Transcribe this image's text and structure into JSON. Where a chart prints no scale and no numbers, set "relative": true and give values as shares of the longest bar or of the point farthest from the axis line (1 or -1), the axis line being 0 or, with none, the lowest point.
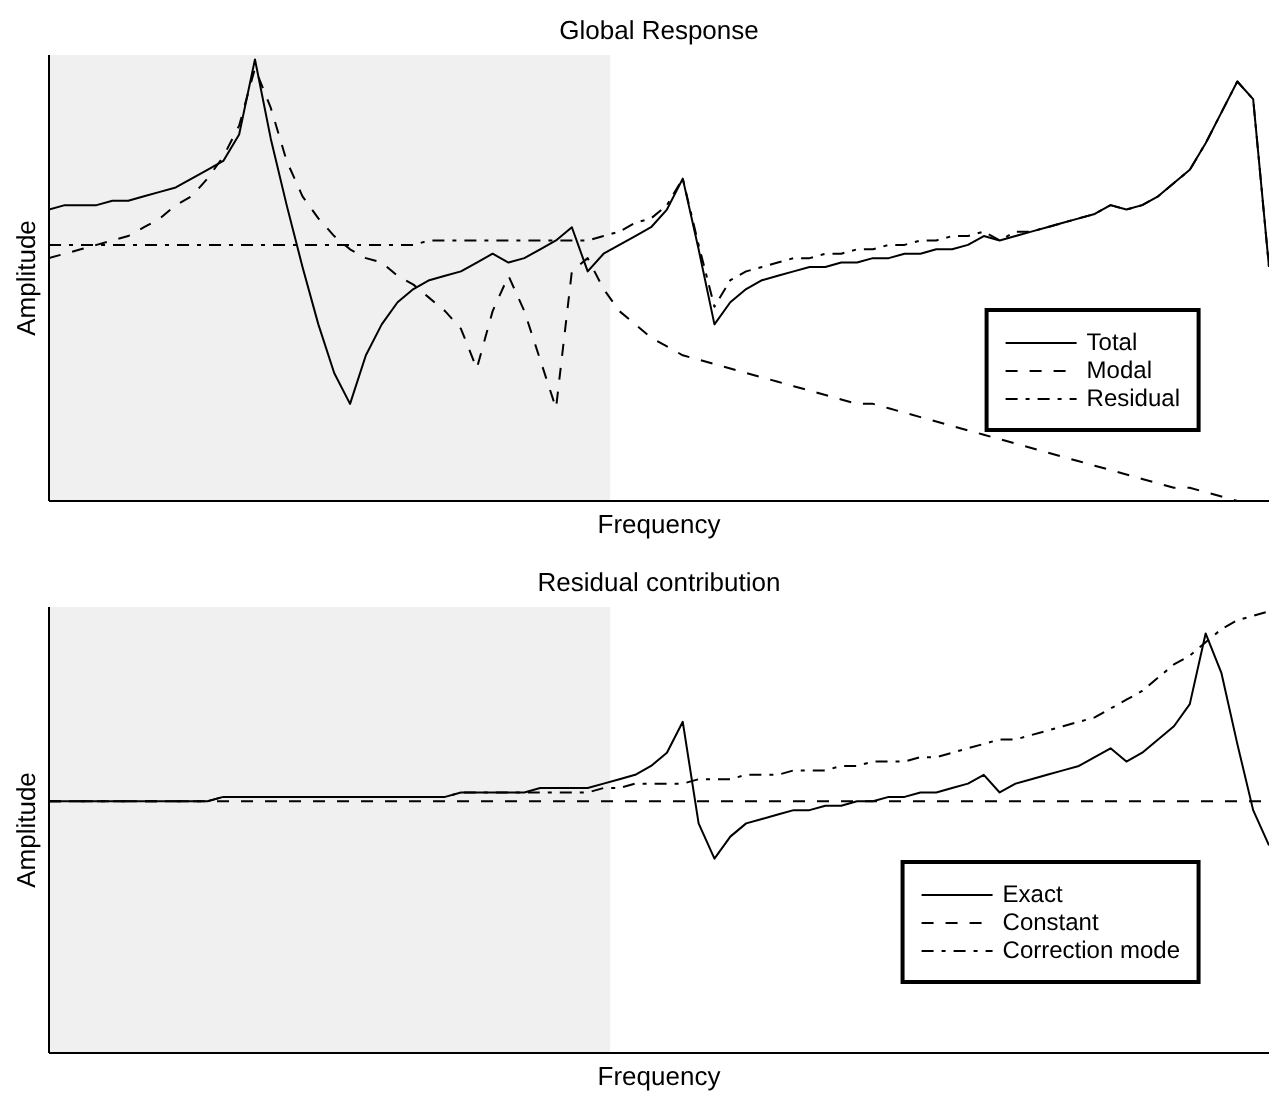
{
  "chart_data": [
    {
      "type": "line",
      "title": "Global Response",
      "xlabel": "Frequency",
      "ylabel": "Amplitude",
      "relative": true,
      "tick_labels": false,
      "legend": "bottom right",
      "categories": [
        null,
        null,
        null,
        null,
        null,
        null,
        null,
        null,
        null,
        null,
        null,
        null,
        null,
        null,
        null,
        null,
        null,
        null,
        null,
        null,
        null,
        null,
        null,
        null,
        null,
        null,
        null,
        null,
        null,
        null,
        null,
        null,
        null,
        null,
        null,
        null,
        null,
        null,
        null,
        null,
        null,
        null,
        null,
        null,
        null,
        null,
        null,
        null,
        null,
        null,
        null,
        null,
        null,
        null,
        null,
        null,
        null,
        null,
        null,
        null,
        null,
        null,
        null,
        null,
        null,
        null,
        null,
        null,
        null,
        null,
        null,
        null,
        null,
        null,
        null,
        null,
        null,
        null
      ],
      "series": [
        {
          "name": "Total",
          "color": "#000000",
          "line_style": "solid",
          "values": [
            0.66,
            0.67,
            0.67,
            0.67,
            0.68,
            0.68,
            0.69,
            0.7,
            0.71,
            0.73,
            0.75,
            0.77,
            0.83,
            1.0,
            0.82,
            0.67,
            0.53,
            0.4,
            0.29,
            0.22,
            0.33,
            0.4,
            0.45,
            0.48,
            0.5,
            0.51,
            0.52,
            0.54,
            0.56,
            0.54,
            0.55,
            0.57,
            0.59,
            0.62,
            0.52,
            0.56,
            0.58,
            0.6,
            0.62,
            0.66,
            0.73,
            0.57,
            0.4,
            0.45,
            0.48,
            0.5,
            0.51,
            0.52,
            0.53,
            0.53,
            0.54,
            0.54,
            0.55,
            0.55,
            0.56,
            0.56,
            0.57,
            0.57,
            0.58,
            0.6,
            0.59,
            0.6,
            0.61,
            0.62,
            0.63,
            0.64,
            0.65,
            0.67,
            0.66,
            0.67,
            0.69,
            0.72,
            0.75,
            0.81,
            0.88,
            0.95,
            0.91,
            0.53
          ]
        },
        {
          "name": "Modal",
          "color": "#000000",
          "line_style": "dashed",
          "values": [
            0.55,
            0.56,
            0.57,
            0.58,
            0.59,
            0.6,
            0.62,
            0.64,
            0.67,
            0.69,
            0.73,
            0.78,
            0.85,
            0.98,
            0.89,
            0.77,
            0.69,
            0.64,
            0.6,
            0.57,
            0.55,
            0.54,
            0.51,
            0.49,
            0.46,
            0.43,
            0.39,
            0.3,
            0.43,
            0.51,
            0.43,
            0.32,
            0.21,
            0.52,
            0.55,
            0.48,
            0.43,
            0.4,
            0.37,
            0.35,
            0.33,
            0.32,
            0.31,
            0.3,
            0.29,
            0.28,
            0.27,
            0.26,
            0.25,
            0.24,
            0.23,
            0.22,
            0.22,
            0.21,
            0.2,
            0.19,
            0.18,
            0.17,
            0.16,
            0.15,
            0.14,
            0.13,
            0.12,
            0.11,
            0.1,
            0.09,
            0.08,
            0.07,
            0.06,
            0.05,
            0.04,
            0.03,
            0.03,
            0.02,
            0.01,
            0,
            0,
            0
          ]
        },
        {
          "name": "Residual",
          "color": "#000000",
          "line_style": "dashdot",
          "values": [
            0.58,
            0.58,
            0.58,
            0.58,
            0.58,
            0.58,
            0.58,
            0.58,
            0.58,
            0.58,
            0.58,
            0.58,
            0.58,
            0.58,
            0.58,
            0.58,
            0.58,
            0.58,
            0.58,
            0.58,
            0.58,
            0.58,
            0.58,
            0.58,
            0.59,
            0.59,
            0.59,
            0.59,
            0.59,
            0.59,
            0.59,
            0.59,
            0.59,
            0.59,
            0.59,
            0.6,
            0.61,
            0.63,
            0.64,
            0.67,
            0.73,
            0.58,
            0.44,
            0.5,
            0.52,
            0.53,
            0.54,
            0.55,
            0.55,
            0.56,
            0.56,
            0.57,
            0.57,
            0.58,
            0.58,
            0.59,
            0.59,
            0.6,
            0.6,
            0.61,
            0.59,
            0.61,
            0.61,
            0.62,
            0.63,
            0.64,
            0.65,
            0.67,
            0.66,
            0.67,
            0.69,
            0.72,
            0.75,
            0.81,
            0.88,
            0.95,
            0.91,
            0.53
          ]
        }
      ]
    },
    {
      "type": "line",
      "title": "Residual contribution",
      "xlabel": "Frequency",
      "ylabel": "Amplitude",
      "relative": true,
      "tick_labels": false,
      "legend": "bottom right",
      "categories": [
        null,
        null,
        null,
        null,
        null,
        null,
        null,
        null,
        null,
        null,
        null,
        null,
        null,
        null,
        null,
        null,
        null,
        null,
        null,
        null,
        null,
        null,
        null,
        null,
        null,
        null,
        null,
        null,
        null,
        null,
        null,
        null,
        null,
        null,
        null,
        null,
        null,
        null,
        null,
        null,
        null,
        null,
        null,
        null,
        null,
        null,
        null,
        null,
        null,
        null,
        null,
        null,
        null,
        null,
        null,
        null,
        null,
        null,
        null,
        null,
        null,
        null,
        null,
        null,
        null,
        null,
        null,
        null,
        null,
        null,
        null,
        null,
        null,
        null,
        null,
        null,
        null,
        null
      ],
      "series": [
        {
          "name": "Exact",
          "color": "#000000",
          "line_style": "solid",
          "values": [
            0.57,
            0.57,
            0.57,
            0.57,
            0.57,
            0.57,
            0.57,
            0.57,
            0.57,
            0.57,
            0.57,
            0.58,
            0.58,
            0.58,
            0.58,
            0.58,
            0.58,
            0.58,
            0.58,
            0.58,
            0.58,
            0.58,
            0.58,
            0.58,
            0.58,
            0.58,
            0.59,
            0.59,
            0.59,
            0.59,
            0.59,
            0.6,
            0.6,
            0.6,
            0.6,
            0.61,
            0.62,
            0.63,
            0.65,
            0.68,
            0.75,
            0.52,
            0.44,
            0.49,
            0.52,
            0.53,
            0.54,
            0.55,
            0.55,
            0.56,
            0.56,
            0.57,
            0.57,
            0.58,
            0.58,
            0.59,
            0.59,
            0.6,
            0.61,
            0.63,
            0.59,
            0.61,
            0.62,
            0.63,
            0.64,
            0.65,
            0.67,
            0.69,
            0.66,
            0.68,
            0.71,
            0.74,
            0.79,
            0.95,
            0.86,
            0.7,
            0.55,
            0.47
          ]
        },
        {
          "name": "Constant",
          "color": "#000000",
          "line_style": "dashed",
          "values": [
            0.57,
            0.57,
            0.57,
            0.57,
            0.57,
            0.57,
            0.57,
            0.57,
            0.57,
            0.57,
            0.57,
            0.57,
            0.57,
            0.57,
            0.57,
            0.57,
            0.57,
            0.57,
            0.57,
            0.57,
            0.57,
            0.57,
            0.57,
            0.57,
            0.57,
            0.57,
            0.57,
            0.57,
            0.57,
            0.57,
            0.57,
            0.57,
            0.57,
            0.57,
            0.57,
            0.57,
            0.57,
            0.57,
            0.57,
            0.57,
            0.57,
            0.57,
            0.57,
            0.57,
            0.57,
            0.57,
            0.57,
            0.57,
            0.57,
            0.57,
            0.57,
            0.57,
            0.57,
            0.57,
            0.57,
            0.57,
            0.57,
            0.57,
            0.57,
            0.57,
            0.57,
            0.57,
            0.57,
            0.57,
            0.57,
            0.57,
            0.57,
            0.57,
            0.57,
            0.57,
            0.57,
            0.57,
            0.57,
            0.57,
            0.57,
            0.57,
            0.57,
            0.57
          ]
        },
        {
          "name": "Correction mode",
          "color": "#000000",
          "line_style": "dashdot",
          "values": [
            0.57,
            0.57,
            0.57,
            0.57,
            0.57,
            0.57,
            0.57,
            0.57,
            0.57,
            0.57,
            0.57,
            0.58,
            0.58,
            0.58,
            0.58,
            0.58,
            0.58,
            0.58,
            0.58,
            0.58,
            0.58,
            0.58,
            0.58,
            0.58,
            0.58,
            0.58,
            0.59,
            0.59,
            0.59,
            0.59,
            0.59,
            0.59,
            0.59,
            0.59,
            0.59,
            0.6,
            0.6,
            0.61,
            0.61,
            0.61,
            0.61,
            0.62,
            0.62,
            0.62,
            0.63,
            0.63,
            0.63,
            0.64,
            0.64,
            0.64,
            0.65,
            0.65,
            0.66,
            0.66,
            0.66,
            0.67,
            0.67,
            0.68,
            0.69,
            0.7,
            0.71,
            0.71,
            0.72,
            0.73,
            0.74,
            0.75,
            0.76,
            0.78,
            0.8,
            0.82,
            0.85,
            0.88,
            0.9,
            0.93,
            0.96,
            0.98,
            0.99,
            1.0
          ]
        }
      ]
    }
  ]
}
